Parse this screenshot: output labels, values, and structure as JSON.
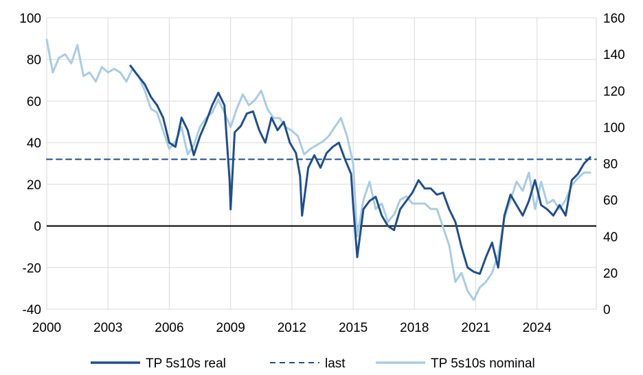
{
  "chart_data": {
    "type": "line",
    "title": "",
    "xlabel": "",
    "ylabel": "",
    "x_ticks": [
      "2000",
      "2003",
      "2006",
      "2009",
      "2012",
      "2015",
      "2018",
      "2021",
      "2024"
    ],
    "x_range": [
      2000.0,
      2026.9
    ],
    "y_left_ticks": [
      "100",
      "80",
      "60",
      "40",
      "20",
      "0",
      "-20",
      "-40"
    ],
    "y_left_range": [
      -40,
      100
    ],
    "y_right_ticks": [
      "160",
      "140",
      "120",
      "100",
      "80",
      "60",
      "40",
      "20",
      "0"
    ],
    "y_right_range": [
      0,
      160
    ],
    "grid": true,
    "legend_position": "bottom",
    "zero_line": true,
    "series": [
      {
        "name": "TP 5s10s real",
        "axis": "left",
        "color": "#1f4e8c",
        "style": "solid",
        "x": [
          2004.1,
          2004.4,
          2004.8,
          2005.1,
          2005.4,
          2005.7,
          2006.0,
          2006.3,
          2006.6,
          2006.9,
          2007.2,
          2007.5,
          2007.8,
          2008.1,
          2008.4,
          2008.7,
          2008.95,
          2009.0,
          2009.2,
          2009.5,
          2009.8,
          2010.1,
          2010.4,
          2010.7,
          2011.0,
          2011.3,
          2011.6,
          2011.9,
          2012.2,
          2012.4,
          2012.5,
          2012.8,
          2013.1,
          2013.4,
          2013.7,
          2014.0,
          2014.3,
          2014.6,
          2014.9,
          2015.0,
          2015.2,
          2015.5,
          2015.8,
          2016.1,
          2016.4,
          2016.7,
          2017.0,
          2017.3,
          2017.6,
          2017.9,
          2018.2,
          2018.5,
          2018.8,
          2019.1,
          2019.4,
          2019.7,
          2020.0,
          2020.3,
          2020.6,
          2020.9,
          2021.2,
          2021.5,
          2021.8,
          2022.1,
          2022.4,
          2022.7,
          2023.0,
          2023.3,
          2023.6,
          2023.9,
          2024.2,
          2024.5,
          2024.8,
          2025.1,
          2025.4,
          2025.7,
          2026.0,
          2026.3,
          2026.6
        ],
        "y": [
          77,
          73,
          68,
          62,
          58,
          52,
          40,
          38,
          52,
          46,
          34,
          43,
          50,
          58,
          64,
          58,
          22,
          8,
          45,
          48,
          54,
          55,
          46,
          40,
          52,
          46,
          50,
          40,
          35,
          24,
          5,
          28,
          34,
          28,
          35,
          38,
          40,
          32,
          25,
          10,
          -15,
          8,
          12,
          14,
          5,
          0,
          -2,
          8,
          12,
          16,
          22,
          18,
          18,
          15,
          16,
          8,
          2,
          -10,
          -20,
          -22,
          -23,
          -15,
          -8,
          -20,
          5,
          15,
          10,
          5,
          12,
          22,
          10,
          8,
          5,
          10,
          5,
          22,
          25,
          30,
          33
        ]
      },
      {
        "name": "last",
        "axis": "left",
        "color": "#1f4e8c",
        "style": "dashed",
        "x": [
          2000.0,
          2026.9
        ],
        "y": [
          32,
          32
        ]
      },
      {
        "name": "TP 5s10s nominal",
        "axis": "right",
        "color": "#a9cce3",
        "style": "solid",
        "x": [
          2000.0,
          2000.3,
          2000.6,
          2000.9,
          2001.2,
          2001.5,
          2001.8,
          2002.1,
          2002.4,
          2002.7,
          2003.0,
          2003.3,
          2003.6,
          2003.9,
          2004.2,
          2004.5,
          2004.8,
          2005.1,
          2005.4,
          2005.7,
          2006.0,
          2006.3,
          2006.6,
          2006.9,
          2007.2,
          2007.5,
          2007.8,
          2008.1,
          2008.4,
          2008.7,
          2009.0,
          2009.3,
          2009.6,
          2009.9,
          2010.2,
          2010.5,
          2010.8,
          2011.1,
          2011.4,
          2011.7,
          2012.0,
          2012.3,
          2012.6,
          2012.9,
          2013.2,
          2013.5,
          2013.8,
          2014.1,
          2014.4,
          2014.7,
          2015.0,
          2015.2,
          2015.5,
          2015.8,
          2016.1,
          2016.4,
          2016.7,
          2017.0,
          2017.3,
          2017.6,
          2017.9,
          2018.2,
          2018.5,
          2018.8,
          2019.1,
          2019.4,
          2019.7,
          2020.0,
          2020.3,
          2020.6,
          2020.9,
          2021.2,
          2021.5,
          2021.8,
          2022.1,
          2022.4,
          2022.7,
          2023.0,
          2023.3,
          2023.6,
          2023.9,
          2024.2,
          2024.5,
          2024.8,
          2025.1,
          2025.4,
          2025.7,
          2026.0,
          2026.3,
          2026.6
        ],
        "y": [
          148,
          130,
          138,
          140,
          135,
          145,
          128,
          130,
          125,
          133,
          130,
          132,
          130,
          125,
          132,
          128,
          120,
          110,
          108,
          98,
          88,
          92,
          100,
          85,
          90,
          100,
          105,
          108,
          115,
          108,
          100,
          110,
          118,
          112,
          115,
          120,
          110,
          105,
          105,
          100,
          98,
          95,
          85,
          88,
          90,
          92,
          95,
          100,
          105,
          95,
          80,
          40,
          60,
          70,
          55,
          58,
          48,
          52,
          60,
          62,
          58,
          58,
          58,
          55,
          55,
          45,
          35,
          15,
          20,
          10,
          5,
          12,
          15,
          20,
          30,
          50,
          60,
          70,
          65,
          75,
          55,
          70,
          58,
          60,
          55,
          60,
          68,
          72,
          75,
          75
        ]
      }
    ]
  }
}
